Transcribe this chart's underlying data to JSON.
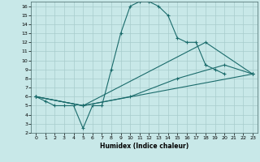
{
  "xlabel": "Humidex (Indice chaleur)",
  "xlim": [
    -0.5,
    23.5
  ],
  "ylim": [
    2,
    16.5
  ],
  "xticks": [
    0,
    1,
    2,
    3,
    4,
    5,
    6,
    7,
    8,
    9,
    10,
    11,
    12,
    13,
    14,
    15,
    16,
    17,
    18,
    19,
    20,
    21,
    22,
    23
  ],
  "yticks": [
    2,
    3,
    4,
    5,
    6,
    7,
    8,
    9,
    10,
    11,
    12,
    13,
    14,
    15,
    16
  ],
  "bg_color": "#c8e8e8",
  "grid_color": "#a8cccc",
  "line_color": "#1a6b6b",
  "lines": [
    {
      "x": [
        0,
        1,
        2,
        3,
        4,
        5,
        6,
        7,
        8,
        9,
        10,
        11,
        12,
        13,
        14,
        15,
        16,
        17,
        18,
        19,
        20
      ],
      "y": [
        6,
        5.5,
        5,
        5,
        5,
        2.5,
        5,
        5,
        9,
        13,
        16,
        16.5,
        16.5,
        16,
        15,
        12.5,
        12,
        12,
        9.5,
        9,
        8.5
      ]
    },
    {
      "x": [
        0,
        5,
        10,
        15,
        20,
        23
      ],
      "y": [
        6,
        5,
        6,
        8,
        9.5,
        8.5
      ]
    },
    {
      "x": [
        0,
        5,
        23
      ],
      "y": [
        6,
        5,
        8.5
      ]
    },
    {
      "x": [
        0,
        5,
        18,
        23
      ],
      "y": [
        6,
        5,
        12,
        8.5
      ]
    }
  ]
}
